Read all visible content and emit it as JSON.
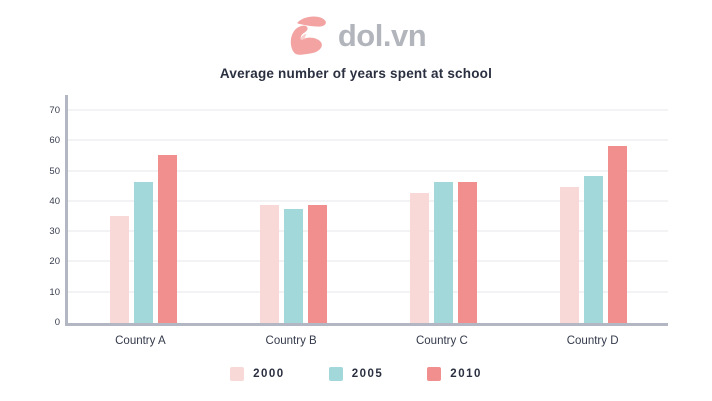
{
  "logo": {
    "text": "dol.vn",
    "icon_color": "#f2a3a2",
    "text_color": "#b2b5bc"
  },
  "chart_data": {
    "type": "bar",
    "title": "Average number of years spent at school",
    "categories": [
      "Country A",
      "Country B",
      "Country C",
      "Country D"
    ],
    "series": [
      {
        "name": "2000",
        "color": "#f9d9d7",
        "values": [
          35.5,
          39,
          43,
          45
        ]
      },
      {
        "name": "2005",
        "color": "#a3d8db",
        "values": [
          46.5,
          37.5,
          46.5,
          48.5
        ]
      },
      {
        "name": "2010",
        "color": "#f18f8e",
        "values": [
          55.5,
          39,
          46.5,
          58.5
        ]
      }
    ],
    "xlabel": "",
    "ylabel": "",
    "ylim": [
      0,
      70
    ],
    "y_ticks": [
      0,
      10,
      20,
      30,
      40,
      50,
      60,
      70
    ],
    "grid": true,
    "legend_position": "bottom"
  },
  "style": {
    "axis_color": "#b3b7c3",
    "grid_color": "#f3f3f6",
    "text_color": "#2b3040"
  }
}
